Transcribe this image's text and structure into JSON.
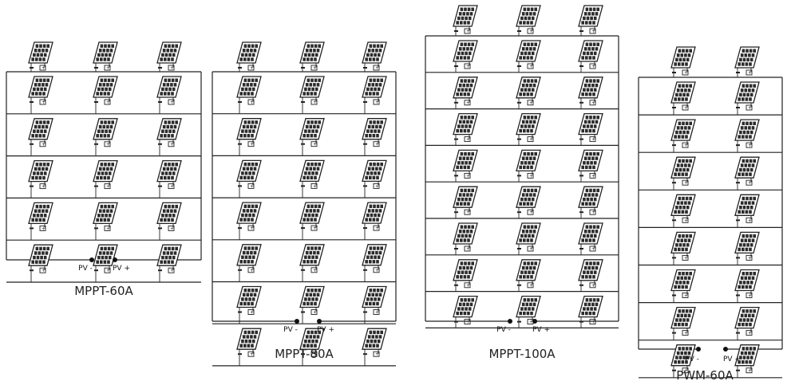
{
  "arrays": [
    {
      "id": "mppt-60a",
      "title": "MPPT-60A",
      "rows": 5,
      "cols": 3,
      "top_panel_row": true,
      "pv_negative_label": "PV -",
      "pv_positive_label": "PV +"
    },
    {
      "id": "mppt-80a",
      "title": "MPPT-80A",
      "rows": 7,
      "cols": 3,
      "top_panel_row": true,
      "pv_negative_label": "PV -",
      "pv_positive_label": "PV +"
    },
    {
      "id": "mppt-100a",
      "title": "MPPT-100A",
      "rows": 8,
      "cols": 3,
      "top_panel_row": true,
      "pv_negative_label": "PV -",
      "pv_positive_label": "PV +"
    },
    {
      "id": "pwm-60a",
      "title": "PWM-60A",
      "rows": 8,
      "cols": 2,
      "top_panel_row": true,
      "pv_negative_label": "PV -",
      "pv_positive_label": "PV +"
    }
  ],
  "terminal_marks": {
    "negative": "-",
    "positive": "+"
  },
  "colors": {
    "line": "#222222",
    "cell": "#2b2b2b",
    "text": "#222222",
    "background": "#ffffff"
  }
}
